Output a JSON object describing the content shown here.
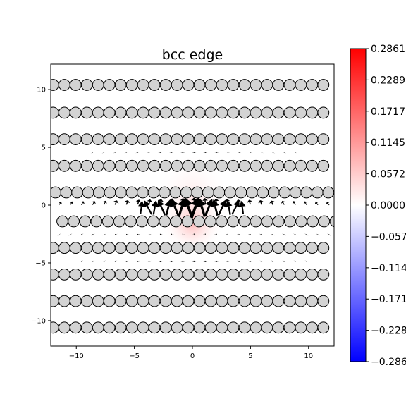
{
  "chart_data": {
    "type": "quiver",
    "title": "bcc edge",
    "xlim": [
      -12.2,
      12.2
    ],
    "ylim": [
      -12.2,
      12.2
    ],
    "x_ticks": [
      -10,
      -5,
      0,
      5,
      10
    ],
    "y_ticks": [
      -10,
      -5,
      0,
      5,
      10
    ],
    "x_tick_labels": [
      "−10",
      "−5",
      "0",
      "5",
      "10"
    ],
    "y_tick_labels": [
      "−10",
      "−5",
      "0",
      "5",
      "10"
    ],
    "atom_rows": [
      {
        "y": 10.4,
        "x_start": -12.0,
        "dx": 0.97,
        "count": 25
      },
      {
        "y": 8.0,
        "x_start": -12.0,
        "dx": 0.97,
        "count": 25
      },
      {
        "y": 5.7,
        "x_start": -12.0,
        "dx": 0.97,
        "count": 25
      },
      {
        "y": 3.4,
        "x_start": -12.0,
        "dx": 0.97,
        "count": 25
      },
      {
        "y": 1.1,
        "x_start": -11.8,
        "dx": 0.94,
        "count": 26
      },
      {
        "y": -1.4,
        "x_start": -11.2,
        "dx": 0.98,
        "count": 25
      },
      {
        "y": -3.7,
        "x_start": -12.0,
        "dx": 0.97,
        "count": 25
      },
      {
        "y": -6.0,
        "x_start": -12.0,
        "dx": 0.97,
        "count": 25
      },
      {
        "y": -8.3,
        "x_start": -12.0,
        "dx": 0.97,
        "count": 25
      },
      {
        "y": -10.6,
        "x_start": -12.0,
        "dx": 0.97,
        "count": 25
      }
    ],
    "atom_radius": 0.48,
    "atom_color": "#d3d3d3",
    "colorbar": {
      "vmin": -0.2861,
      "vmax": 0.2861,
      "cmap": "bwr",
      "tick_labels": [
        "0.2861",
        "0.2289",
        "0.1717",
        "0.1145",
        "0.0572",
        "0.0000",
        "−0.057",
        "−0.114",
        "−0.171",
        "−0.228",
        "−0.286"
      ],
      "tick_values": [
        0.2861,
        0.2289,
        0.1717,
        0.1145,
        0.0572,
        0.0,
        -0.0572,
        -0.1145,
        -0.1717,
        -0.2289,
        -0.2861
      ]
    },
    "core_field": {
      "center": [
        0,
        -1.5
      ],
      "positive_peak": 0.07,
      "sigma_x": 3.0,
      "sigma_y": 2.8
    }
  }
}
